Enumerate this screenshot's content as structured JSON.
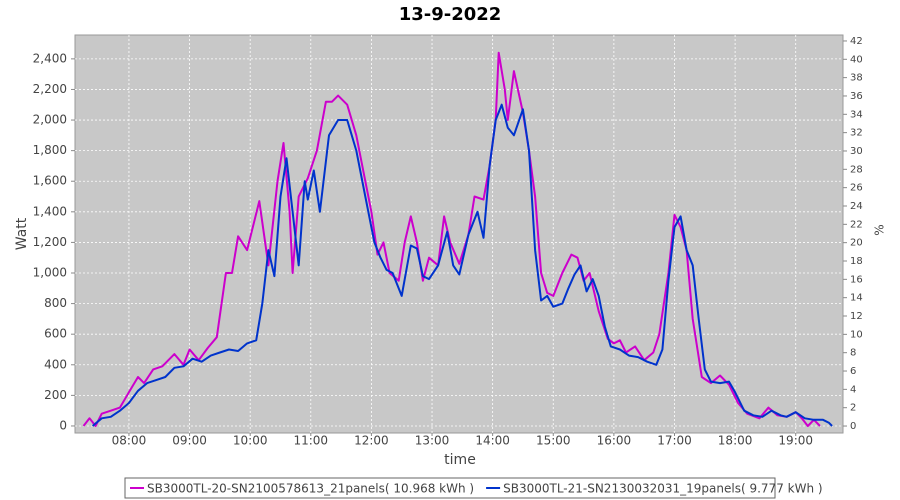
{
  "chart_data": {
    "type": "line",
    "title": "13-9-2022",
    "xlabel": "time",
    "ylabel": "Watt",
    "y2label": "%",
    "xlim": [
      7.11,
      19.78
    ],
    "xticks": [
      {
        "value": 8,
        "label": "08:00"
      },
      {
        "value": 9,
        "label": "09:00"
      },
      {
        "value": 10,
        "label": "10:00"
      },
      {
        "value": 11,
        "label": "11:00"
      },
      {
        "value": 12,
        "label": "12:00"
      },
      {
        "value": 13,
        "label": "13:00"
      },
      {
        "value": 14,
        "label": "14:00"
      },
      {
        "value": 15,
        "label": "15:00"
      },
      {
        "value": 16,
        "label": "16:00"
      },
      {
        "value": 17,
        "label": "17:00"
      },
      {
        "value": 18,
        "label": "18:00"
      },
      {
        "value": 19,
        "label": "19:00"
      }
    ],
    "ylim": [
      -46,
      2556
    ],
    "yticks": [
      0,
      200,
      400,
      600,
      800,
      {
        "value": 1000,
        "label": "1,000"
      },
      {
        "value": 1200,
        "label": "1,200"
      },
      {
        "value": 1400,
        "label": "1,400"
      },
      {
        "value": 1600,
        "label": "1,600"
      },
      {
        "value": 1800,
        "label": "1,800"
      },
      {
        "value": 2000,
        "label": "2,000"
      },
      {
        "value": 2200,
        "label": "2,200"
      },
      {
        "value": 2400,
        "label": "2,400"
      }
    ],
    "y2lim": [
      -0.76,
      42.65
    ],
    "y2ticks": [
      0,
      2,
      4,
      6,
      8,
      10,
      12,
      14,
      16,
      18,
      20,
      22,
      24,
      26,
      28,
      30,
      32,
      34,
      36,
      38,
      40,
      42
    ],
    "grid": true,
    "legend": "bottom",
    "series": [
      {
        "name": "SB3000TL-20-SN2100578613_21panels( 10.968 kWh )",
        "color": "#cc00cc",
        "x": [
          7.25,
          7.35,
          7.45,
          7.55,
          7.7,
          7.85,
          8.0,
          8.15,
          8.25,
          8.4,
          8.55,
          8.75,
          8.9,
          9.0,
          9.15,
          9.3,
          9.45,
          9.6,
          9.7,
          9.8,
          9.95,
          10.15,
          10.3,
          10.45,
          10.55,
          10.65,
          10.7,
          10.8,
          10.95,
          11.1,
          11.25,
          11.35,
          11.45,
          11.6,
          11.75,
          11.9,
          12.0,
          12.1,
          12.2,
          12.3,
          12.45,
          12.55,
          12.65,
          12.75,
          12.85,
          12.95,
          13.1,
          13.2,
          13.3,
          13.45,
          13.6,
          13.7,
          13.85,
          13.95,
          14.05,
          14.1,
          14.2,
          14.25,
          14.35,
          14.5,
          14.6,
          14.7,
          14.8,
          14.9,
          15.0,
          15.15,
          15.3,
          15.4,
          15.5,
          15.6,
          15.75,
          15.9,
          16.0,
          16.1,
          16.2,
          16.35,
          16.5,
          16.65,
          16.75,
          16.9,
          17.0,
          17.1,
          17.2,
          17.3,
          17.45,
          17.6,
          17.75,
          17.9,
          18.05,
          18.2,
          18.4,
          18.55,
          18.7,
          18.85,
          19.0,
          19.1,
          19.2,
          19.3,
          19.4
        ],
        "values": [
          0,
          50,
          0,
          80,
          100,
          120,
          220,
          320,
          280,
          370,
          390,
          470,
          400,
          500,
          430,
          510,
          580,
          1000,
          1000,
          1240,
          1150,
          1470,
          1050,
          1600,
          1850,
          1400,
          1000,
          1500,
          1620,
          1800,
          2120,
          2120,
          2160,
          2100,
          1900,
          1600,
          1400,
          1120,
          1200,
          1000,
          950,
          1200,
          1370,
          1200,
          950,
          1100,
          1050,
          1370,
          1200,
          1060,
          1250,
          1500,
          1480,
          1700,
          2000,
          2440,
          2200,
          2000,
          2320,
          2050,
          1800,
          1500,
          1000,
          870,
          850,
          1000,
          1120,
          1100,
          950,
          1000,
          750,
          570,
          540,
          560,
          480,
          520,
          430,
          480,
          600,
          1000,
          1380,
          1300,
          1150,
          700,
          320,
          280,
          330,
          270,
          150,
          80,
          50,
          120,
          70,
          60,
          90,
          50,
          0,
          40,
          0
        ]
      },
      {
        "name": "SB3000TL-21-SN2130032031_19panels( 9.777 kWh )",
        "color": "#0033cc",
        "x": [
          7.4,
          7.55,
          7.7,
          7.85,
          8.0,
          8.15,
          8.3,
          8.45,
          8.6,
          8.75,
          8.9,
          9.05,
          9.2,
          9.35,
          9.5,
          9.65,
          9.8,
          9.95,
          10.1,
          10.2,
          10.3,
          10.4,
          10.5,
          10.6,
          10.7,
          10.8,
          10.9,
          10.95,
          11.05,
          11.15,
          11.3,
          11.45,
          11.6,
          11.75,
          11.9,
          12.05,
          12.15,
          12.25,
          12.35,
          12.5,
          12.65,
          12.75,
          12.85,
          12.95,
          13.1,
          13.25,
          13.35,
          13.45,
          13.6,
          13.75,
          13.85,
          13.95,
          14.05,
          14.15,
          14.25,
          14.35,
          14.5,
          14.6,
          14.7,
          14.8,
          14.9,
          15.0,
          15.15,
          15.25,
          15.35,
          15.45,
          15.55,
          15.65,
          15.75,
          15.85,
          15.95,
          16.1,
          16.25,
          16.4,
          16.55,
          16.7,
          16.8,
          16.9,
          17.0,
          17.1,
          17.2,
          17.3,
          17.4,
          17.5,
          17.6,
          17.75,
          17.9,
          18.0,
          18.15,
          18.3,
          18.45,
          18.6,
          18.75,
          18.85,
          19.0,
          19.15,
          19.3,
          19.45,
          19.55,
          19.6
        ],
        "values": [
          0,
          50,
          60,
          100,
          150,
          230,
          280,
          300,
          320,
          380,
          390,
          440,
          420,
          460,
          480,
          500,
          490,
          540,
          560,
          800,
          1150,
          980,
          1500,
          1750,
          1400,
          1050,
          1600,
          1480,
          1670,
          1400,
          1900,
          2000,
          2000,
          1800,
          1500,
          1200,
          1100,
          1020,
          1000,
          850,
          1180,
          1160,
          980,
          960,
          1050,
          1270,
          1050,
          990,
          1250,
          1400,
          1230,
          1700,
          2000,
          2100,
          1950,
          1900,
          2070,
          1800,
          1150,
          820,
          850,
          780,
          800,
          900,
          990,
          1050,
          880,
          960,
          850,
          650,
          520,
          500,
          460,
          450,
          420,
          400,
          500,
          950,
          1300,
          1370,
          1150,
          1050,
          700,
          370,
          290,
          280,
          290,
          220,
          100,
          70,
          60,
          100,
          70,
          60,
          90,
          50,
          40,
          40,
          20,
          0
        ]
      }
    ]
  }
}
